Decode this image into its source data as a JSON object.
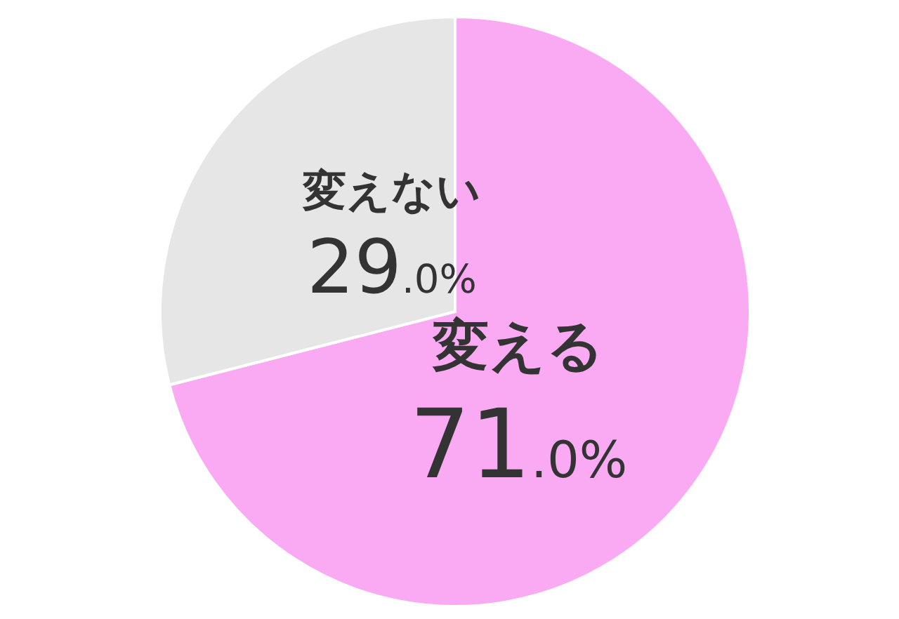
{
  "chart_data": {
    "type": "pie",
    "categories": [
      "変える",
      "変えない"
    ],
    "values": [
      71.0,
      29.0
    ],
    "colors": [
      "#f9aaf2",
      "#e6e6e6"
    ],
    "value_labels": [
      "71.0%",
      "29.0%"
    ]
  }
}
